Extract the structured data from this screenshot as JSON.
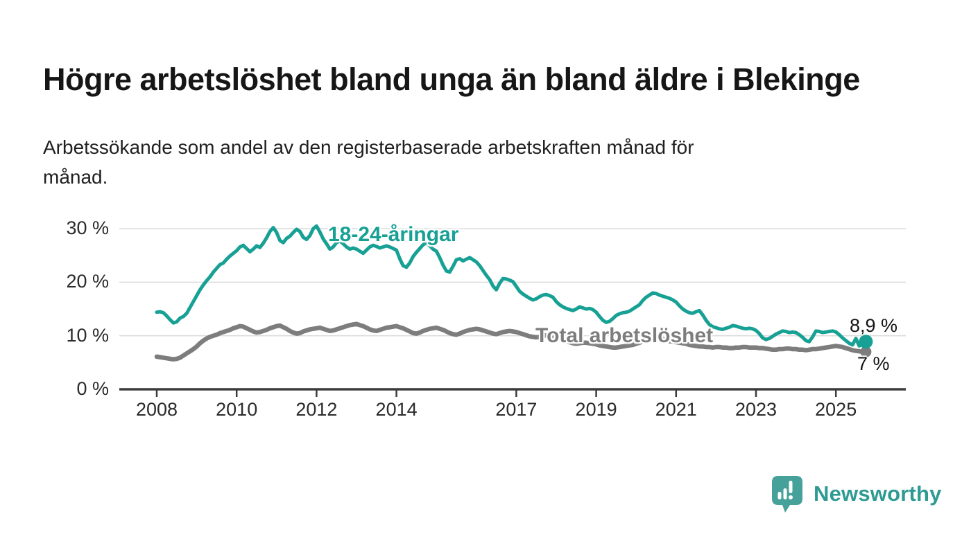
{
  "chart_data": {
    "type": "line",
    "title": "Högre arbetslöshet bland unga än bland äldre i Blekinge",
    "subtitle_lines": [
      "Arbetssökande som andel av den registerbaserade arbetskraften månad för",
      "månad."
    ],
    "frequency": "monthly",
    "x_start": "2008-01",
    "x_end": "2025-10",
    "ylim": [
      0,
      32
    ],
    "grid": "horizontal",
    "legend_position": "inline-labels",
    "yticks": [
      {
        "label": "0 %",
        "value": 0
      },
      {
        "label": "10 %",
        "value": 10
      },
      {
        "label": "20 %",
        "value": 20
      },
      {
        "label": "30 %",
        "value": 30
      }
    ],
    "xticks": [
      {
        "label": "2008",
        "year": 2008
      },
      {
        "label": "2010",
        "year": 2010
      },
      {
        "label": "2012",
        "year": 2012
      },
      {
        "label": "2014",
        "year": 2014
      },
      {
        "label": "2017",
        "year": 2017
      },
      {
        "label": "2019",
        "year": 2019
      },
      {
        "label": "2021",
        "year": 2021
      },
      {
        "label": "2023",
        "year": 2023
      },
      {
        "label": "2025",
        "year": 2025
      }
    ],
    "series": [
      {
        "name": "18-24-åringar",
        "color": "#17a094",
        "end_label": "8,9 %",
        "last_value": 8.9,
        "values": [
          14.4,
          14.5,
          14.3,
          13.7,
          13.0,
          12.4,
          12.6,
          13.3,
          13.6,
          14.2,
          15.3,
          16.4,
          17.5,
          18.6,
          19.5,
          20.3,
          21.0,
          21.9,
          22.6,
          23.3,
          23.6,
          24.3,
          24.9,
          25.4,
          25.9,
          26.6,
          26.9,
          26.3,
          25.7,
          26.2,
          26.8,
          26.5,
          27.3,
          28.3,
          29.5,
          30.2,
          29.3,
          27.8,
          27.4,
          28.2,
          28.6,
          29.3,
          29.9,
          29.5,
          28.4,
          28.0,
          28.7,
          30.0,
          30.5,
          29.4,
          28.1,
          27.2,
          26.2,
          26.6,
          27.4,
          27.7,
          27.2,
          26.6,
          26.2,
          26.4,
          26.2,
          25.8,
          25.4,
          26.0,
          26.6,
          26.9,
          26.7,
          26.4,
          26.6,
          26.8,
          26.6,
          26.3,
          26.0,
          24.4,
          23.1,
          22.8,
          23.6,
          24.8,
          25.6,
          26.3,
          27.0,
          27.4,
          26.8,
          26.2,
          25.8,
          24.6,
          23.2,
          22.1,
          21.9,
          23.0,
          24.2,
          24.4,
          24.0,
          24.3,
          24.6,
          24.2,
          23.8,
          23.1,
          22.2,
          21.3,
          20.5,
          19.3,
          18.6,
          19.8,
          20.7,
          20.6,
          20.4,
          20.1,
          19.2,
          18.3,
          17.8,
          17.4,
          17.0,
          16.7,
          16.9,
          17.3,
          17.6,
          17.7,
          17.5,
          17.2,
          16.4,
          15.8,
          15.4,
          15.1,
          14.9,
          14.7,
          15.0,
          15.4,
          15.2,
          15.0,
          15.1,
          14.9,
          14.4,
          13.6,
          12.9,
          12.5,
          12.7,
          13.2,
          13.8,
          14.1,
          14.3,
          14.4,
          14.6,
          15.0,
          15.4,
          15.8,
          16.6,
          17.2,
          17.6,
          18.0,
          17.9,
          17.6,
          17.4,
          17.2,
          17.0,
          16.7,
          16.3,
          15.6,
          15.0,
          14.6,
          14.3,
          14.2,
          14.5,
          14.7,
          13.9,
          12.9,
          12.1,
          11.7,
          11.5,
          11.3,
          11.2,
          11.4,
          11.6,
          11.9,
          11.8,
          11.6,
          11.4,
          11.3,
          11.4,
          11.3,
          11.0,
          10.4,
          9.6,
          9.3,
          9.5,
          9.9,
          10.3,
          10.6,
          10.9,
          10.8,
          10.6,
          10.7,
          10.6,
          10.2,
          9.7,
          9.1,
          8.9,
          9.8,
          10.9,
          10.8,
          10.6,
          10.7,
          10.8,
          10.9,
          10.7,
          10.2,
          9.6,
          9.1,
          8.6,
          8.3,
          9.5,
          8.1,
          8.5,
          8.9
        ]
      },
      {
        "name": "Total arbetslöshet",
        "color": "#7d7d7d",
        "end_label": "7 %",
        "last_value": 7.0,
        "values": [
          6.1,
          6.0,
          5.9,
          5.8,
          5.7,
          5.6,
          5.7,
          5.9,
          6.3,
          6.7,
          7.1,
          7.5,
          8.0,
          8.6,
          9.1,
          9.5,
          9.8,
          10.0,
          10.2,
          10.5,
          10.7,
          10.9,
          11.1,
          11.4,
          11.6,
          11.8,
          11.7,
          11.4,
          11.1,
          10.8,
          10.6,
          10.7,
          10.9,
          11.1,
          11.4,
          11.6,
          11.8,
          11.9,
          11.6,
          11.3,
          10.9,
          10.6,
          10.4,
          10.5,
          10.8,
          11.0,
          11.2,
          11.3,
          11.4,
          11.5,
          11.3,
          11.1,
          10.9,
          11.0,
          11.2,
          11.4,
          11.6,
          11.8,
          12.0,
          12.1,
          12.2,
          12.0,
          11.8,
          11.5,
          11.2,
          11.0,
          10.9,
          11.1,
          11.3,
          11.5,
          11.6,
          11.7,
          11.8,
          11.6,
          11.4,
          11.1,
          10.8,
          10.5,
          10.4,
          10.6,
          10.9,
          11.1,
          11.3,
          11.4,
          11.5,
          11.3,
          11.1,
          10.8,
          10.5,
          10.3,
          10.2,
          10.4,
          10.7,
          10.9,
          11.1,
          11.2,
          11.3,
          11.2,
          11.0,
          10.8,
          10.6,
          10.4,
          10.3,
          10.5,
          10.7,
          10.8,
          10.9,
          10.8,
          10.7,
          10.5,
          10.3,
          10.1,
          9.9,
          9.8,
          9.7,
          9.8,
          10.0,
          10.1,
          10.0,
          9.9,
          9.7,
          9.5,
          9.2,
          9.0,
          8.8,
          8.6,
          8.5,
          8.6,
          8.7,
          8.7,
          8.6,
          8.5,
          8.4,
          8.2,
          8.1,
          8.0,
          7.9,
          7.8,
          7.8,
          7.9,
          8.0,
          8.1,
          8.2,
          8.3,
          8.5,
          8.7,
          9.0,
          9.4,
          9.6,
          9.7,
          9.6,
          9.5,
          9.4,
          9.2,
          9.0,
          8.9,
          8.8,
          8.7,
          8.6,
          8.5,
          8.3,
          8.2,
          8.1,
          8.0,
          8.0,
          7.9,
          7.9,
          7.8,
          7.9,
          7.9,
          7.8,
          7.8,
          7.7,
          7.7,
          7.8,
          7.8,
          7.9,
          7.9,
          7.8,
          7.8,
          7.8,
          7.7,
          7.7,
          7.6,
          7.5,
          7.4,
          7.4,
          7.5,
          7.5,
          7.6,
          7.6,
          7.5,
          7.5,
          7.4,
          7.4,
          7.3,
          7.4,
          7.5,
          7.5,
          7.6,
          7.7,
          7.8,
          7.9,
          8.0,
          8.1,
          8.0,
          7.9,
          7.7,
          7.5,
          7.3,
          7.2,
          7.1,
          7.0,
          7.0
        ]
      }
    ]
  },
  "branding": {
    "logo_text": "Newsworthy",
    "logo_color": "#2e9b93",
    "bubble_color": "#46a19a"
  },
  "colors": {
    "grid": "#dcdcdc",
    "axis": "#3c3c3c",
    "text": "#161616"
  }
}
